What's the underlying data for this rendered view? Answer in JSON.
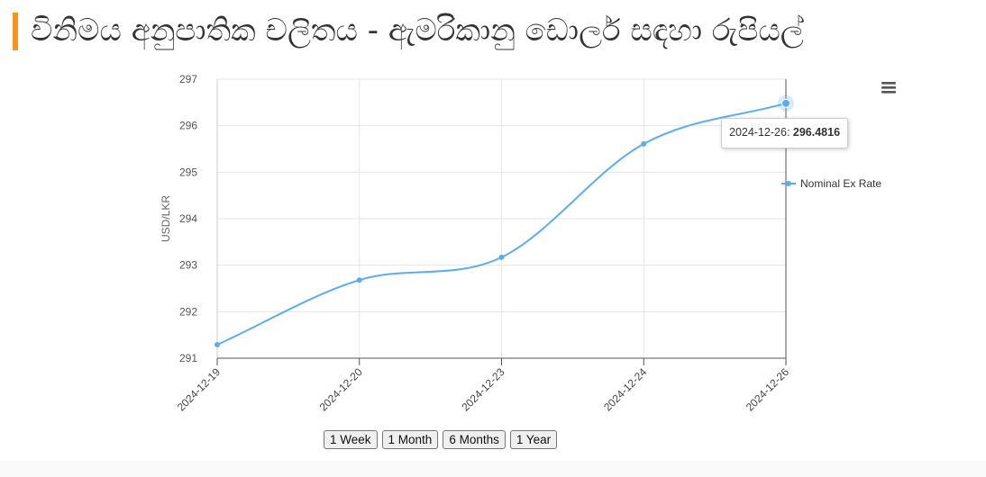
{
  "page": {
    "title": "විනිමය අනුපාතික චලිතය - ඇමරිකානු ඩොලර් සඳහා රුපියල්"
  },
  "chart_data": {
    "type": "line",
    "title": "",
    "xlabel": "",
    "ylabel": "USD/LKR",
    "categories": [
      "2024-12-19",
      "2024-12-20",
      "2024-12-23",
      "2024-12-24",
      "2024-12-26"
    ],
    "series": [
      {
        "name": "Nominal Ex Rate",
        "values": [
          291.29,
          292.68,
          293.17,
          295.61,
          296.4816
        ]
      }
    ],
    "ylim": [
      291,
      297
    ],
    "yticks": [
      291,
      292,
      293,
      294,
      295,
      296,
      297
    ],
    "grid": true,
    "legend": "right",
    "color": "#5cacf0",
    "tooltip": {
      "label": "2024-12-26:",
      "value": "296.4816"
    }
  },
  "range_buttons": [
    "1 Week",
    "1 Month",
    "6 Months",
    "1 Year"
  ],
  "icons": {
    "menu": "hamburger-menu-icon"
  }
}
